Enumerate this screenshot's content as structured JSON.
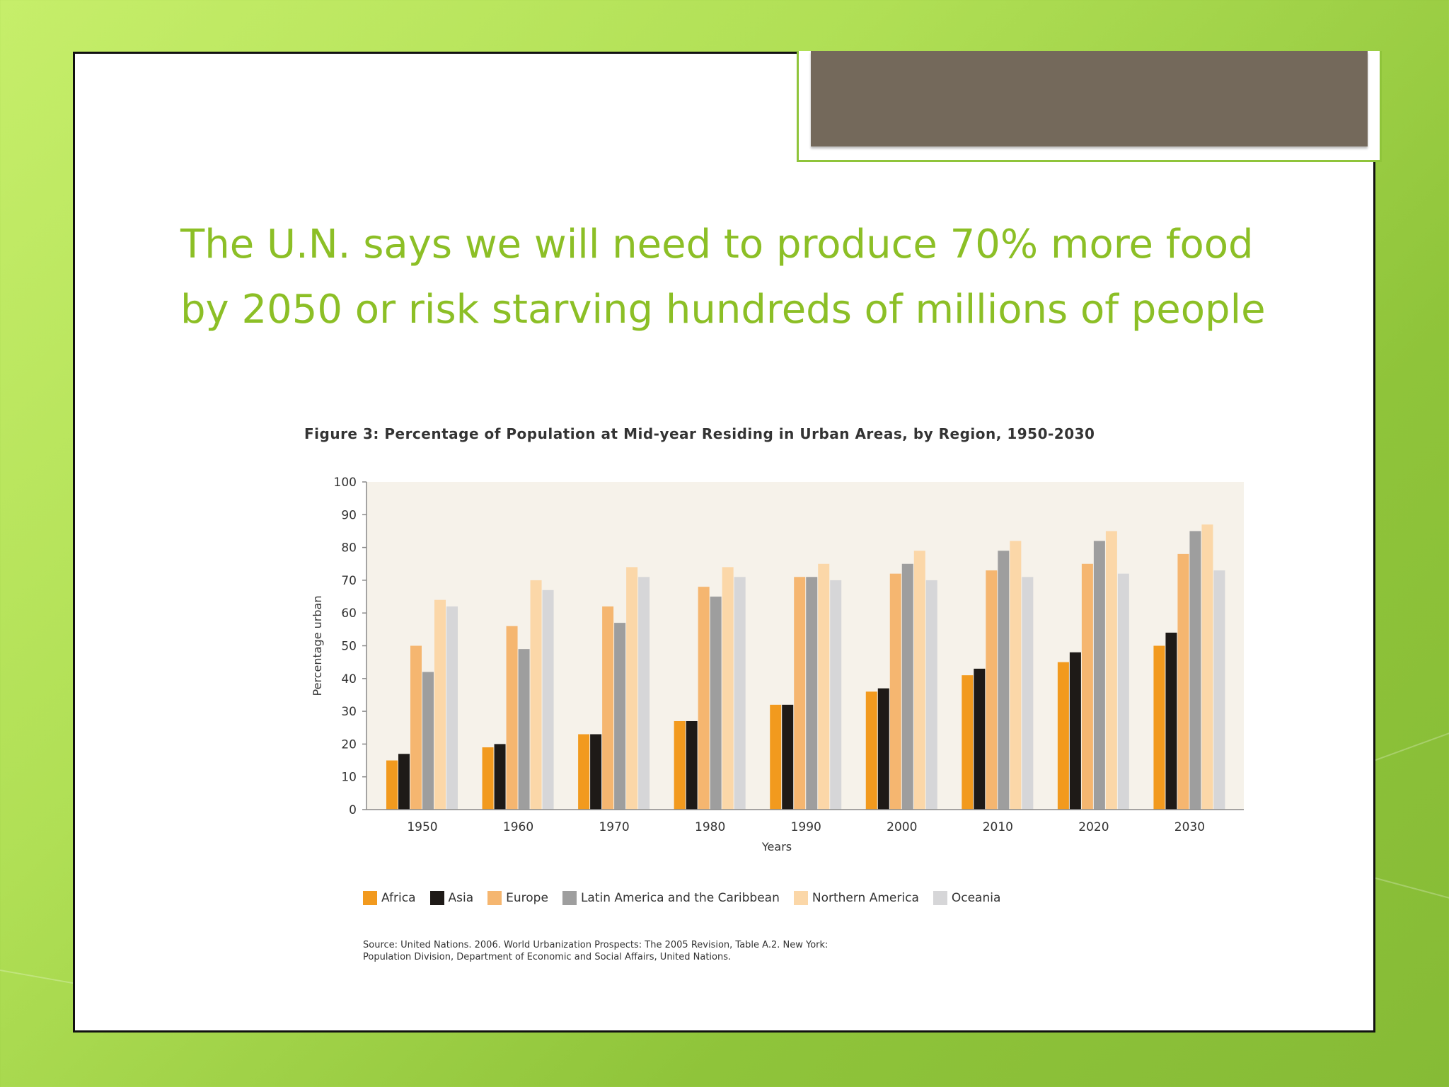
{
  "headline": {
    "line1": "The U.N. says we will need to produce 70% more food",
    "line2": "by 2050 or risk starving hundreds of millions of people"
  },
  "figure_title": "Figure 3: Percentage of Population at Mid-year Residing in Urban Areas, by Region, 1950-2030",
  "source": {
    "line1": "Source: United Nations. 2006. World Urbanization Prospects: The 2005 Revision, Table A.2. New York:",
    "line2": "Population Division, Department of Economic and Social Affairs, United Nations."
  },
  "colors": {
    "Africa": "#f29a1e",
    "Asia": "#1e1a17",
    "Europe": "#f5b670",
    "Latin America and the Caribbean": "#9e9e9e",
    "Northern America": "#fbd7a8",
    "Oceania": "#d6d6d8",
    "plot_bg": "#f6f2ea"
  },
  "chart_data": {
    "type": "bar",
    "title": "Figure 3: Percentage of Population at Mid-year Residing in Urban Areas, by Region, 1950-2030",
    "xlabel": "Years",
    "ylabel": "Percentage urban",
    "ylim": [
      0,
      100
    ],
    "yticks": [
      0,
      10,
      20,
      30,
      40,
      50,
      60,
      70,
      80,
      90,
      100
    ],
    "grid": false,
    "legend_position": "bottom",
    "categories": [
      "1950",
      "1960",
      "1970",
      "1980",
      "1990",
      "2000",
      "2010",
      "2020",
      "2030"
    ],
    "series": [
      {
        "name": "Africa",
        "values": [
          15,
          19,
          23,
          27,
          32,
          36,
          41,
          45,
          50
        ]
      },
      {
        "name": "Asia",
        "values": [
          17,
          20,
          23,
          27,
          32,
          37,
          43,
          48,
          54
        ]
      },
      {
        "name": "Europe",
        "values": [
          50,
          56,
          62,
          68,
          71,
          72,
          73,
          75,
          78
        ]
      },
      {
        "name": "Latin America and the Caribbean",
        "values": [
          42,
          49,
          57,
          65,
          71,
          75,
          79,
          82,
          85
        ]
      },
      {
        "name": "Northern America",
        "values": [
          64,
          70,
          74,
          74,
          75,
          79,
          82,
          85,
          87
        ]
      },
      {
        "name": "Oceania",
        "values": [
          62,
          67,
          71,
          71,
          70,
          70,
          71,
          72,
          73
        ]
      }
    ]
  }
}
